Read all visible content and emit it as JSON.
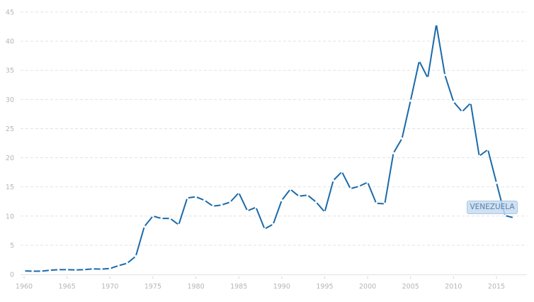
{
  "chart_data": {
    "type": "line",
    "title": "",
    "xlabel": "",
    "ylabel": "",
    "ylim": [
      0,
      45
    ],
    "xlim": [
      1960,
      2018
    ],
    "grid": true,
    "yticks": [
      0,
      5,
      10,
      15,
      20,
      25,
      30,
      35,
      40,
      45
    ],
    "xticks": [
      1960,
      1965,
      1970,
      1975,
      1980,
      1985,
      1990,
      1995,
      2000,
      2005,
      2010,
      2015
    ],
    "series": [
      {
        "name": "VENEZUELA",
        "color": "#1a6aaa",
        "x": [
          1960,
          1961,
          1962,
          1963,
          1964,
          1965,
          1966,
          1967,
          1968,
          1969,
          1970,
          1971,
          1972,
          1973,
          1974,
          1975,
          1976,
          1977,
          1978,
          1979,
          1980,
          1981,
          1982,
          1983,
          1984,
          1985,
          1986,
          1987,
          1988,
          1989,
          1990,
          1991,
          1992,
          1993,
          1994,
          1995,
          1996,
          1997,
          1998,
          1999,
          2000,
          2001,
          2002,
          2003,
          2004,
          2005,
          2006,
          2007,
          2008,
          2009,
          2010,
          2011,
          2012,
          2013,
          2014,
          2015,
          2016,
          2017
        ],
        "values": [
          0.6,
          0.55,
          0.55,
          0.7,
          0.8,
          0.8,
          0.75,
          0.8,
          0.95,
          0.9,
          1.0,
          1.5,
          1.9,
          3.1,
          8.2,
          10.0,
          9.6,
          9.6,
          8.5,
          13.1,
          13.3,
          12.7,
          11.7,
          11.9,
          12.4,
          14.0,
          10.9,
          11.5,
          7.8,
          8.6,
          12.7,
          14.6,
          13.4,
          13.6,
          12.4,
          10.7,
          16.1,
          17.6,
          14.7,
          15.1,
          15.8,
          12.2,
          12.1,
          20.8,
          23.3,
          29.8,
          36.6,
          33.7,
          42.9,
          34.2,
          29.6,
          27.9,
          29.4,
          20.3,
          21.4,
          15.7,
          10.1,
          9.7
        ]
      }
    ],
    "annotations": [
      {
        "text": "VENEZUELA",
        "x": 2014.5,
        "y": 11.5
      }
    ]
  },
  "labels": {
    "series_label": "VENEZUELA"
  }
}
